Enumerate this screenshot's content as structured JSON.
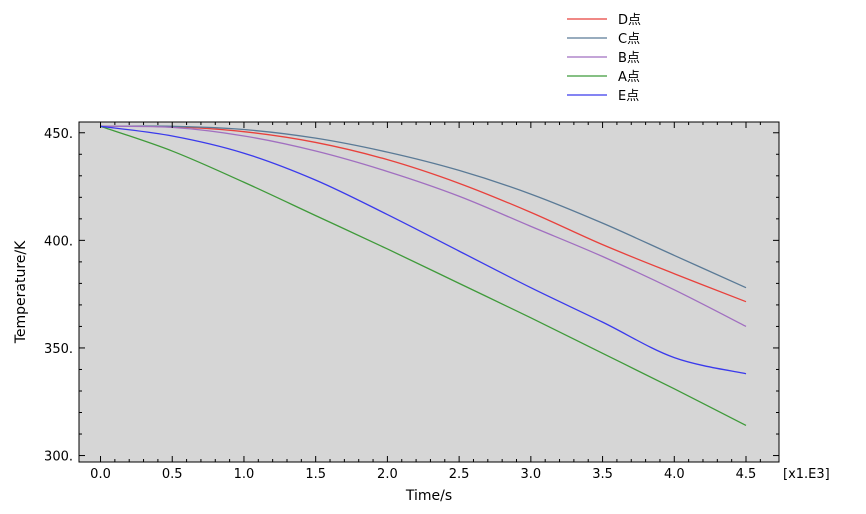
{
  "chart_data": {
    "type": "line",
    "xlabel": "Time/s",
    "ylabel": "Temperature/K",
    "x_multiplier_label": "[x1.E3]",
    "xlim": [
      -0.15,
      4.73
    ],
    "ylim": [
      297,
      455
    ],
    "x_ticks": [
      0.0,
      0.5,
      1.0,
      1.5,
      2.0,
      2.5,
      3.0,
      3.5,
      4.0,
      4.5
    ],
    "x_tick_labels": [
      "0.0",
      "0.5",
      "1.0",
      "1.5",
      "2.0",
      "2.5",
      "3.0",
      "3.5",
      "4.0",
      "4.5"
    ],
    "y_ticks": [
      300,
      350,
      400,
      450
    ],
    "y_tick_labels": [
      "300.",
      "350.",
      "400.",
      "450."
    ],
    "grid": false,
    "legend_position": "top-right, outside plot",
    "plot_background": "#d6d6d6",
    "x": [
      0.0,
      0.5,
      1.0,
      1.5,
      2.0,
      2.5,
      3.0,
      3.5,
      4.0,
      4.5
    ],
    "series": [
      {
        "name": "D点",
        "color": "#e8413c",
        "values": [
          453,
          452.8,
          450.5,
          445.5,
          437.5,
          426.5,
          413,
          398,
          384.5,
          371.5
        ]
      },
      {
        "name": "C点",
        "color": "#5a7a96",
        "values": [
          453,
          453,
          451.5,
          447.5,
          441,
          432.5,
          421.5,
          408,
          393,
          378
        ]
      },
      {
        "name": "B点",
        "color": "#a16fc0",
        "values": [
          453,
          452.5,
          448.5,
          441.5,
          432,
          420.5,
          406.5,
          392.5,
          377,
          360
        ]
      },
      {
        "name": "A点",
        "color": "#3f9a3a",
        "values": [
          453,
          441.5,
          427,
          411.5,
          396,
          380,
          364,
          347.5,
          331,
          314
        ]
      },
      {
        "name": "E点",
        "color": "#3a3aec",
        "values": [
          453,
          448.5,
          440.5,
          428,
          412,
          395,
          378,
          362,
          345.5,
          338
        ]
      }
    ]
  }
}
